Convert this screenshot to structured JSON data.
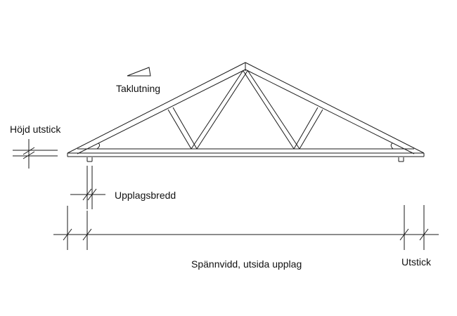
{
  "labels": {
    "roof_pitch": "Taklutning",
    "overhang_height": "Höjd utstick",
    "bearing_width": "Upplagsbredd",
    "span": "Spännvidd, utsida upplag",
    "overhang": "Utstick"
  },
  "colors": {
    "line": "#1a1a1a",
    "background": "#ffffff"
  }
}
